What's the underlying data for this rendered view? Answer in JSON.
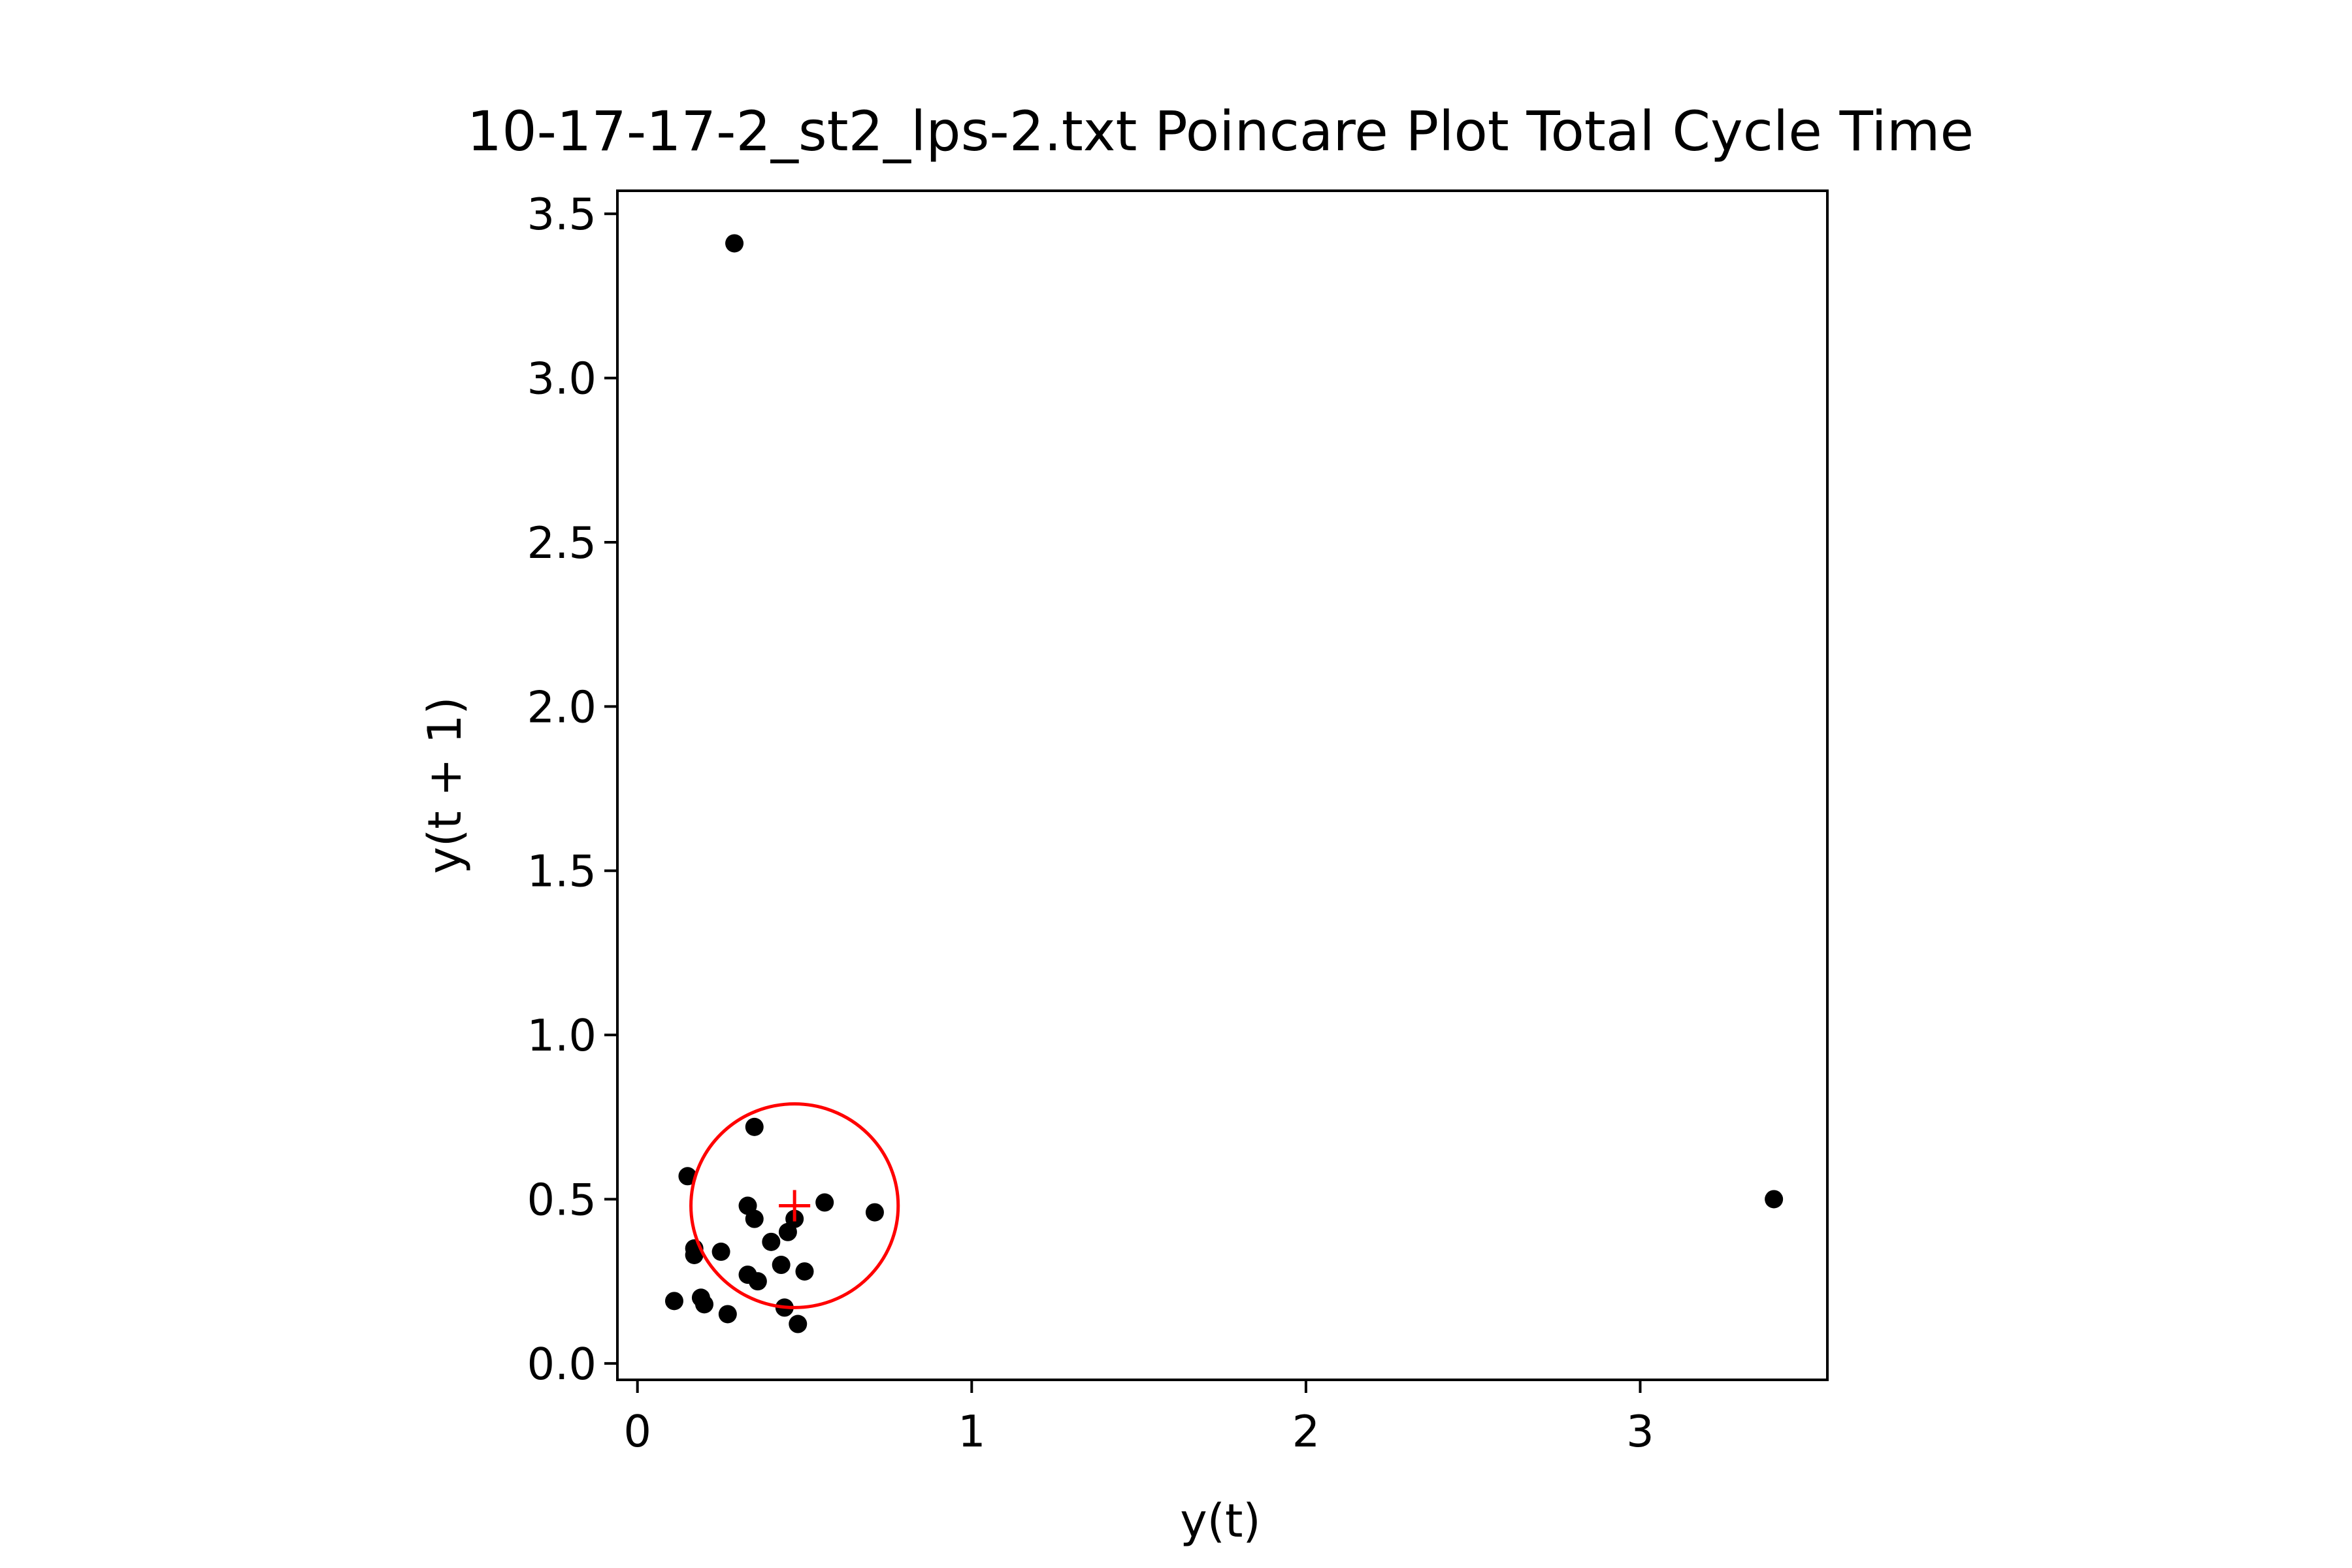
{
  "chart_data": {
    "type": "scatter",
    "title": "10-17-17-2_st2_lps-2.txt Poincare Plot Total Cycle Time",
    "xlabel": "y(t)",
    "ylabel": "y(t + 1)",
    "xlim": [
      -0.06,
      3.56
    ],
    "ylim": [
      -0.05,
      3.57
    ],
    "xticks": [
      0,
      1,
      2,
      3
    ],
    "xtick_labels": [
      "0",
      "1",
      "2",
      "3"
    ],
    "yticks": [
      0.0,
      0.5,
      1.0,
      1.5,
      2.0,
      2.5,
      3.0,
      3.5
    ],
    "ytick_labels": [
      "0.0",
      "0.5",
      "1.0",
      "1.5",
      "2.0",
      "2.5",
      "3.0",
      "3.5"
    ],
    "grid": false,
    "legend": "none",
    "colors": {
      "points": "#000000",
      "centroid": "#ff0000",
      "circle": "#ff0000",
      "axes": "#000000"
    },
    "series": [
      {
        "points": [
          {
            "x": 0.29,
            "y": 3.41
          },
          {
            "x": 3.4,
            "y": 0.5
          },
          {
            "x": 0.35,
            "y": 0.72
          },
          {
            "x": 0.15,
            "y": 0.57
          },
          {
            "x": 0.33,
            "y": 0.48
          },
          {
            "x": 0.56,
            "y": 0.49
          },
          {
            "x": 0.71,
            "y": 0.46
          },
          {
            "x": 0.35,
            "y": 0.44
          },
          {
            "x": 0.47,
            "y": 0.44
          },
          {
            "x": 0.45,
            "y": 0.4
          },
          {
            "x": 0.4,
            "y": 0.37
          },
          {
            "x": 0.17,
            "y": 0.35
          },
          {
            "x": 0.17,
            "y": 0.33
          },
          {
            "x": 0.25,
            "y": 0.34
          },
          {
            "x": 0.43,
            "y": 0.3
          },
          {
            "x": 0.5,
            "y": 0.28
          },
          {
            "x": 0.33,
            "y": 0.27
          },
          {
            "x": 0.36,
            "y": 0.25
          },
          {
            "x": 0.11,
            "y": 0.19
          },
          {
            "x": 0.19,
            "y": 0.2
          },
          {
            "x": 0.2,
            "y": 0.18
          },
          {
            "x": 0.44,
            "y": 0.17
          },
          {
            "x": 0.27,
            "y": 0.15
          },
          {
            "x": 0.48,
            "y": 0.12
          }
        ]
      }
    ],
    "centroid": {
      "x": 0.47,
      "y": 0.48
    },
    "circle": {
      "cx": 0.47,
      "cy": 0.48,
      "r": 0.31
    }
  }
}
